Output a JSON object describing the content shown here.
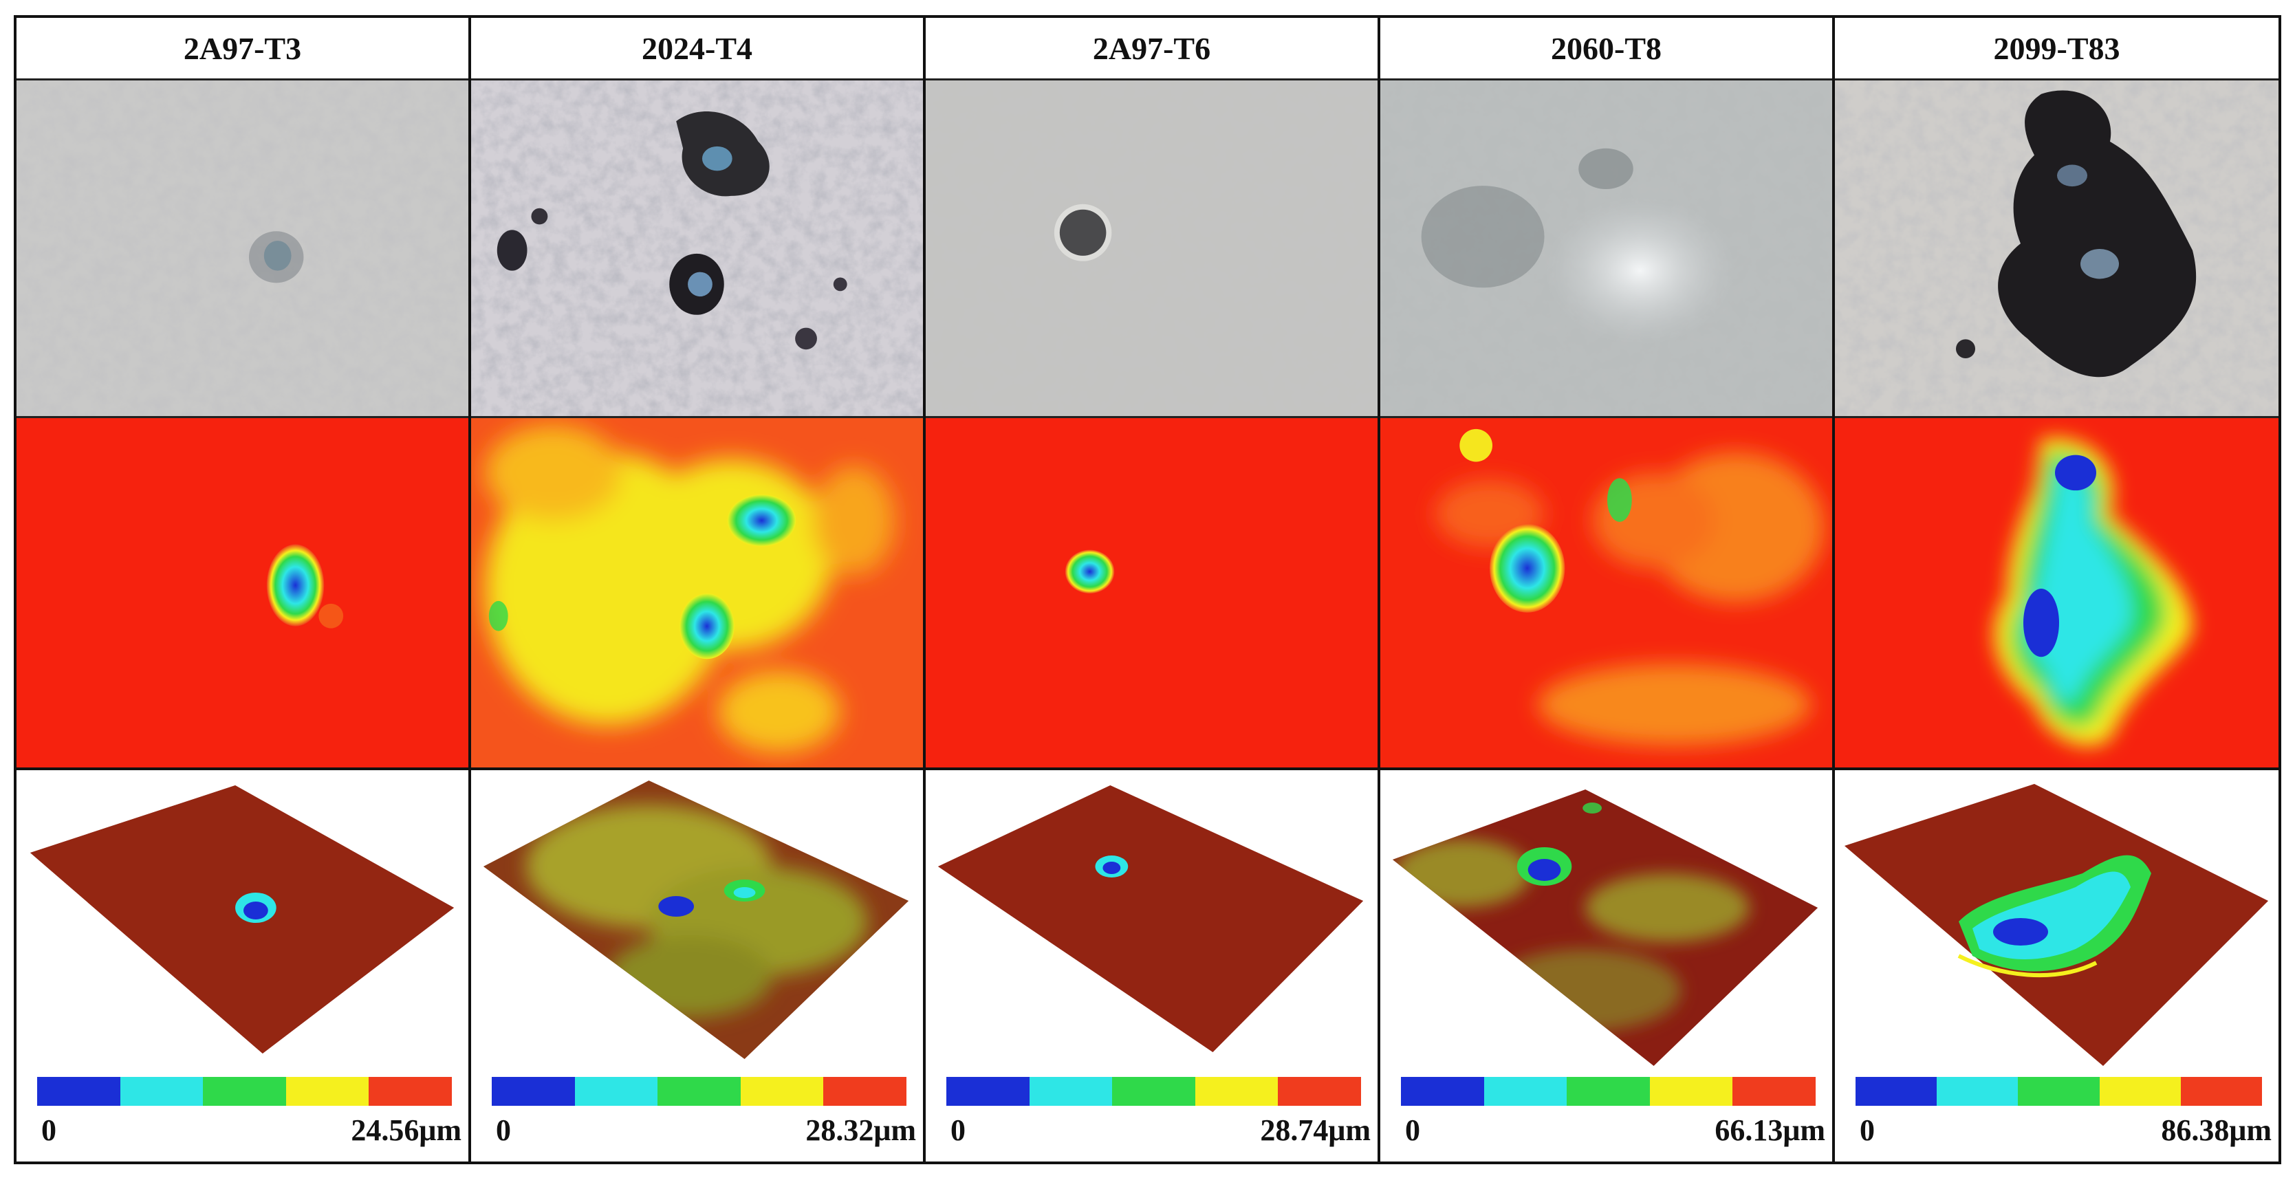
{
  "colorbar": {
    "colors": [
      "#1a2fd6",
      "#2ee6e6",
      "#2fd94a",
      "#f5f01e",
      "#f03c1e"
    ],
    "min_label": "0"
  },
  "samples": [
    {
      "label": "2A97-T3",
      "max_label": "24.56μm"
    },
    {
      "label": "2024-T4",
      "max_label": "28.32μm"
    },
    {
      "label": "2A97-T6",
      "max_label": "28.74μm"
    },
    {
      "label": "2060-T8",
      "max_label": "66.13μm"
    },
    {
      "label": "2099-T83",
      "max_label": "86.38μm"
    }
  ]
}
